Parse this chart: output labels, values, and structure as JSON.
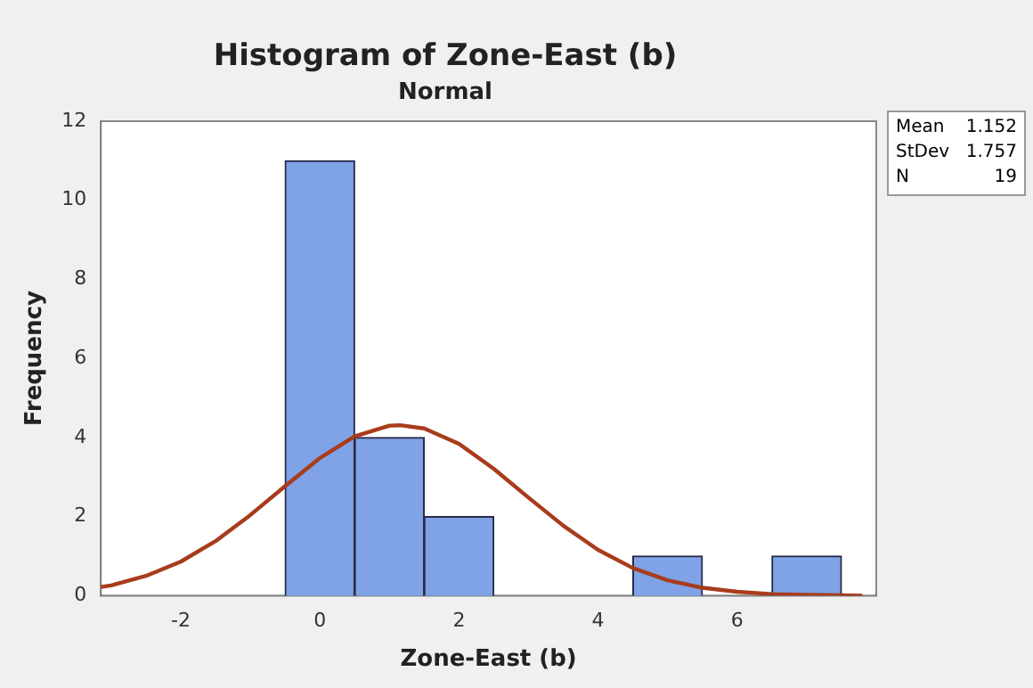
{
  "chart_data": {
    "type": "histogram",
    "title": "Histogram of Zone-East (b)",
    "subtitle": "Normal",
    "xlabel": "Zone-East (b)",
    "ylabel": "Frequency",
    "bins": [
      -0.5,
      0.5,
      1.5,
      2.5,
      3.5,
      4.5,
      5.5,
      6.5,
      7.5
    ],
    "values": [
      11,
      4,
      2,
      0,
      0,
      1,
      0,
      1
    ],
    "color": "#7fa3e6",
    "series": [
      {
        "type": "line",
        "color": "#a83c1c",
        "x": [
          -3.15,
          -3,
          -2.5,
          -2,
          -1.5,
          -1,
          -0.5,
          0,
          0.5,
          1,
          1.152,
          1.5,
          2,
          2.5,
          3,
          3.5,
          4,
          4.5,
          5,
          5.5,
          6,
          6.5,
          7,
          7.5,
          7.8
        ],
        "values": [
          0.22,
          0.26,
          0.5,
          0.86,
          1.38,
          2.04,
          2.77,
          3.48,
          4.03,
          4.3,
          4.31,
          4.23,
          3.84,
          3.21,
          2.48,
          1.77,
          1.16,
          0.7,
          0.39,
          0.2,
          0.1,
          0.04,
          0.02,
          0.01,
          0
        ]
      }
    ],
    "xlim": [
      -3.15,
      8
    ],
    "xticks": [
      -2,
      0,
      2,
      4,
      6
    ],
    "ylim": [
      0,
      12
    ],
    "yticks": [
      0,
      2,
      4,
      6,
      8,
      10,
      12
    ],
    "grid": false,
    "legend": false,
    "annotations": [
      "Mean 1.152",
      "StDev 1.757",
      "N 19"
    ]
  }
}
